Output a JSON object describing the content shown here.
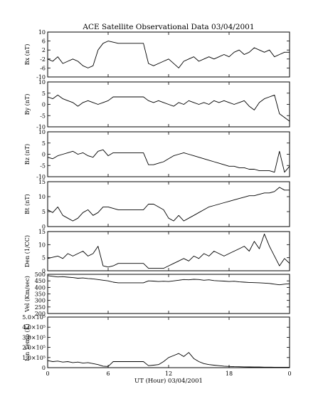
{
  "title": "ACE Satellite Observational Data   03/04/2001",
  "xlabel": "UT (Hour)  03/04/2001",
  "x_ticks": [
    "0",
    "6",
    "12",
    "18",
    "0"
  ],
  "chart_data": [
    {
      "type": "line",
      "ylabel": "Bx (nT)",
      "ylim": [
        -10,
        10
      ],
      "yticks": [
        "10",
        "6",
        "2",
        "-2",
        "-6",
        "-10"
      ],
      "series": [
        {
          "x": [
            0,
            0.5,
            1,
            1.5,
            2,
            2.5,
            3,
            3.5,
            4,
            4.5,
            5,
            5.5,
            6,
            6.5,
            7,
            7.5,
            8,
            8.5,
            9,
            9.5,
            10,
            10.5,
            11,
            11.5,
            12,
            12.5,
            13,
            13.5,
            14,
            14.5,
            15,
            15.5,
            16,
            16.5,
            17,
            17.5,
            18,
            18.5,
            19,
            19.5,
            20,
            20.5,
            21,
            21.5,
            22,
            22.5,
            23,
            23.5,
            24
          ],
          "y": [
            -2,
            -3,
            -1,
            -4,
            -3,
            -2,
            -3,
            -5,
            -6,
            -5,
            2,
            5,
            6,
            5.5,
            5,
            5,
            5,
            5,
            5,
            5,
            -4,
            -5,
            -4,
            -3,
            -2,
            -4,
            -6,
            -3,
            -2,
            -1,
            -3,
            -2,
            -1,
            -2,
            -1,
            0,
            -1,
            1,
            2,
            0,
            1,
            3,
            2,
            1,
            2,
            -1,
            0,
            1,
            1
          ]
        }
      ]
    },
    {
      "type": "line",
      "ylabel": "By (nT)",
      "ylim": [
        -12,
        12
      ],
      "yticks": [
        "10",
        "5",
        "0",
        "-5",
        "-10"
      ],
      "series": [
        {
          "x": [
            0,
            0.5,
            1,
            1.5,
            2,
            2.5,
            3,
            3.5,
            4,
            4.5,
            5,
            5.5,
            6,
            6.5,
            7,
            7.5,
            8,
            8.5,
            9,
            9.5,
            10,
            10.5,
            11,
            11.5,
            12,
            12.5,
            13,
            13.5,
            14,
            14.5,
            15,
            15.5,
            16,
            16.5,
            17,
            17.5,
            18,
            18.5,
            19,
            19.5,
            20,
            20.5,
            21,
            21.5,
            22,
            22.5,
            23,
            23.5,
            24
          ],
          "y": [
            4,
            3,
            5,
            3,
            2,
            1,
            -1,
            1,
            2,
            1,
            0,
            1,
            2,
            4,
            4,
            4,
            4,
            4,
            4,
            4,
            2,
            1,
            2,
            1,
            0,
            -1,
            1,
            0,
            2,
            1,
            0,
            1,
            0,
            2,
            1,
            2,
            1,
            0,
            1,
            2,
            -1,
            -3,
            1,
            3,
            4,
            5,
            -5,
            -7,
            -9
          ]
        }
      ]
    },
    {
      "type": "line",
      "ylabel": "Bz (nT)",
      "ylim": [
        -15,
        15
      ],
      "yticks": [
        "10",
        "5",
        "0",
        "-5",
        "-10"
      ],
      "series": [
        {
          "x": [
            0,
            0.5,
            1,
            1.5,
            2,
            2.5,
            3,
            3.5,
            4,
            4.5,
            5,
            5.5,
            6,
            6.5,
            7,
            7.5,
            8,
            8.5,
            9,
            9.5,
            10,
            10.5,
            11,
            11.5,
            12,
            12.5,
            13,
            13.5,
            14,
            14.5,
            15,
            15.5,
            16,
            16.5,
            17,
            17.5,
            18,
            18.5,
            19,
            19.5,
            20,
            20.5,
            21,
            21.5,
            22,
            22.5,
            23,
            23.5,
            24
          ],
          "y": [
            -2,
            -3,
            -1,
            0,
            1,
            2,
            0,
            1,
            -1,
            -2,
            2,
            3,
            -1,
            1,
            1,
            1,
            1,
            1,
            1,
            1,
            -7,
            -7,
            -6,
            -5,
            -3,
            -1,
            0,
            1,
            0,
            -1,
            -2,
            -3,
            -4,
            -5,
            -6,
            -7,
            -8,
            -8,
            -9,
            -9,
            -10,
            -10,
            -11,
            -11,
            -11,
            -12,
            2,
            -12,
            -8
          ]
        }
      ]
    },
    {
      "type": "line",
      "ylabel": "Bt (nT)",
      "ylim": [
        0,
        16
      ],
      "yticks": [
        "15",
        "10",
        "5",
        "0"
      ],
      "series": [
        {
          "x": [
            0,
            0.5,
            1,
            1.5,
            2,
            2.5,
            3,
            3.5,
            4,
            4.5,
            5,
            5.5,
            6,
            6.5,
            7,
            7.5,
            8,
            8.5,
            9,
            9.5,
            10,
            10.5,
            11,
            11.5,
            12,
            12.5,
            13,
            13.5,
            14,
            14.5,
            15,
            15.5,
            16,
            16.5,
            17,
            17.5,
            18,
            18.5,
            19,
            19.5,
            20,
            20.5,
            21,
            21.5,
            22,
            22.5,
            23,
            23.5,
            24
          ],
          "y": [
            6,
            5,
            7,
            4,
            3,
            2,
            3,
            5,
            6,
            4,
            5,
            7,
            7,
            6.5,
            6,
            6,
            6,
            6,
            6,
            6,
            8,
            8,
            7,
            6,
            3,
            2,
            4,
            2,
            3,
            4,
            5,
            6,
            7,
            7.5,
            8,
            8.5,
            9,
            9.5,
            10,
            10.5,
            11,
            11,
            11.5,
            12,
            12,
            12.5,
            14,
            13,
            13
          ]
        }
      ]
    },
    {
      "type": "line",
      "ylabel": "Den (1/CC)",
      "ylim": [
        0,
        16
      ],
      "yticks": [
        "15",
        "10",
        "5",
        "0"
      ],
      "series": [
        {
          "x": [
            0,
            0.5,
            1,
            1.5,
            2,
            2.5,
            3,
            3.5,
            4,
            4.5,
            5,
            5.5,
            6,
            6.5,
            7,
            7.5,
            8,
            8.5,
            9,
            9.5,
            10,
            10.5,
            11,
            11.5,
            12,
            12.5,
            13,
            13.5,
            14,
            14.5,
            15,
            15.5,
            16,
            16.5,
            17,
            17.5,
            18,
            18.5,
            19,
            19.5,
            20,
            20.5,
            21,
            21.5,
            22,
            22.5,
            23,
            23.5,
            24
          ],
          "y": [
            5,
            5.5,
            6,
            5,
            7,
            6,
            7,
            8,
            6,
            7,
            10,
            2,
            1.5,
            2,
            3,
            3,
            3,
            3,
            3,
            3,
            1,
            1,
            1,
            1,
            2,
            3,
            4,
            5,
            4,
            6,
            5,
            7,
            6,
            8,
            7,
            6,
            7,
            8,
            9,
            10,
            8,
            12,
            9,
            15,
            10,
            6,
            2,
            5,
            3
          ]
        }
      ]
    },
    {
      "type": "line",
      "ylabel": "Vel (Km/sec)",
      "ylim": [
        200,
        500
      ],
      "yticks": [
        "500",
        "450",
        "400",
        "350",
        "300",
        "250",
        "200"
      ],
      "series": [
        {
          "x": [
            0,
            0.5,
            1,
            1.5,
            2,
            2.5,
            3,
            3.5,
            4,
            4.5,
            5,
            5.5,
            6,
            6.5,
            7,
            7.5,
            8,
            8.5,
            9,
            9.5,
            10,
            10.5,
            11,
            11.5,
            12,
            12.5,
            13,
            13.5,
            14,
            14.5,
            15,
            15.5,
            16,
            16.5,
            17,
            17.5,
            18,
            18.5,
            19,
            19.5,
            20,
            20.5,
            21,
            21.5,
            22,
            22.5,
            23,
            23.5,
            24
          ],
          "y": [
            490,
            485,
            480,
            482,
            478,
            475,
            470,
            472,
            468,
            465,
            460,
            455,
            450,
            440,
            435,
            435,
            435,
            435,
            435,
            435,
            450,
            448,
            445,
            447,
            445,
            450,
            455,
            460,
            458,
            462,
            460,
            455,
            458,
            452,
            450,
            448,
            445,
            447,
            442,
            440,
            438,
            436,
            435,
            433,
            430,
            425,
            420,
            425,
            428
          ]
        }
      ]
    },
    {
      "type": "line",
      "ylabel": "Ion Temp (K)",
      "ylim": [
        0,
        500000
      ],
      "yticks": [
        "5.0×10^5",
        "4.0×10^5",
        "3.0×10^5",
        "2.0×10^5",
        "1.0×10^5",
        "0"
      ],
      "series": [
        {
          "x": [
            0,
            0.5,
            1,
            1.5,
            2,
            2.5,
            3,
            3.5,
            4,
            4.5,
            5,
            5.5,
            6,
            6.5,
            7,
            7.5,
            8,
            8.5,
            9,
            9.5,
            10,
            10.5,
            11,
            11.5,
            12,
            12.5,
            13,
            13.5,
            14,
            14.5,
            15,
            15.5,
            16,
            16.5,
            17,
            17.5,
            18,
            18.5,
            19,
            19.5,
            20,
            20.5,
            21,
            21.5,
            22,
            22.5,
            23,
            23.5,
            24
          ],
          "y": [
            70000,
            60000,
            65000,
            55000,
            60000,
            50000,
            55000,
            45000,
            50000,
            40000,
            30000,
            15000,
            12000,
            60000,
            60000,
            60000,
            60000,
            60000,
            60000,
            60000,
            20000,
            25000,
            30000,
            60000,
            100000,
            120000,
            140000,
            110000,
            150000,
            90000,
            60000,
            40000,
            30000,
            25000,
            20000,
            15000,
            12000,
            10000,
            9000,
            8000,
            7000,
            6000,
            6000,
            5000,
            5000,
            4000,
            4000,
            4000,
            4000
          ]
        }
      ]
    }
  ]
}
